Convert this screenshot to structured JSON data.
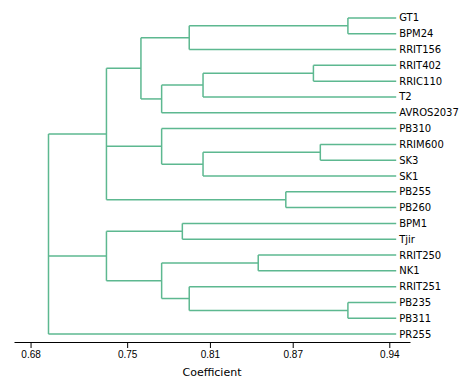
{
  "chart_data": {
    "type": "dendrogram",
    "xlabel": "Coefficient",
    "xlim": [
      0.668,
      0.955
    ],
    "xticks": [
      0.68,
      0.75,
      0.81,
      0.87,
      0.94
    ],
    "color": "#5db890",
    "tree": {
      "value": 0.693,
      "children": [
        {
          "value": 0.735,
          "children": [
            {
              "value": 0.76,
              "children": [
                {
                  "value": 0.795,
                  "children": [
                    {
                      "value": 0.91,
                      "children": [
                        {
                          "name": "GT1",
                          "value": 0.945
                        },
                        {
                          "name": "BPM24",
                          "value": 0.945
                        }
                      ]
                    },
                    {
                      "name": "RRIT156",
                      "value": 0.945
                    }
                  ]
                },
                {
                  "value": 0.775,
                  "children": [
                    {
                      "value": 0.805,
                      "children": [
                        {
                          "value": 0.885,
                          "children": [
                            {
                              "name": "RRIT402",
                              "value": 0.945
                            },
                            {
                              "name": "RRIC110",
                              "value": 0.945
                            }
                          ]
                        },
                        {
                          "name": "T2",
                          "value": 0.945
                        }
                      ]
                    },
                    {
                      "name": "AVROS2037",
                      "value": 0.945
                    }
                  ]
                }
              ]
            },
            {
              "value": 0.775,
              "children": [
                {
                  "name": "PB310",
                  "value": 0.945
                },
                {
                  "value": 0.805,
                  "children": [
                    {
                      "value": 0.89,
                      "children": [
                        {
                          "name": "RRIM600",
                          "value": 0.945
                        },
                        {
                          "name": "SK3",
                          "value": 0.945
                        }
                      ]
                    },
                    {
                      "name": "SK1",
                      "value": 0.945
                    }
                  ]
                }
              ]
            },
            {
              "value": 0.865,
              "children": [
                {
                  "name": "PB255",
                  "value": 0.945
                },
                {
                  "name": "PB260",
                  "value": 0.945
                }
              ]
            }
          ]
        },
        {
          "value": 0.735,
          "children": [
            {
              "value": 0.79,
              "children": [
                {
                  "name": "BPM1",
                  "value": 0.945
                },
                {
                  "name": "Tjir",
                  "value": 0.945
                }
              ]
            },
            {
              "value": 0.775,
              "children": [
                {
                  "value": 0.845,
                  "children": [
                    {
                      "name": "RRIT250",
                      "value": 0.945
                    },
                    {
                      "name": "NK1",
                      "value": 0.945
                    }
                  ]
                },
                {
                  "value": 0.795,
                  "children": [
                    {
                      "name": "RRIT251",
                      "value": 0.945
                    },
                    {
                      "value": 0.91,
                      "children": [
                        {
                          "name": "PB235",
                          "value": 0.945
                        },
                        {
                          "name": "PB311",
                          "value": 0.945
                        }
                      ]
                    }
                  ]
                }
              ]
            }
          ]
        },
        {
          "name": "PR255",
          "value": 0.945
        }
      ]
    }
  }
}
